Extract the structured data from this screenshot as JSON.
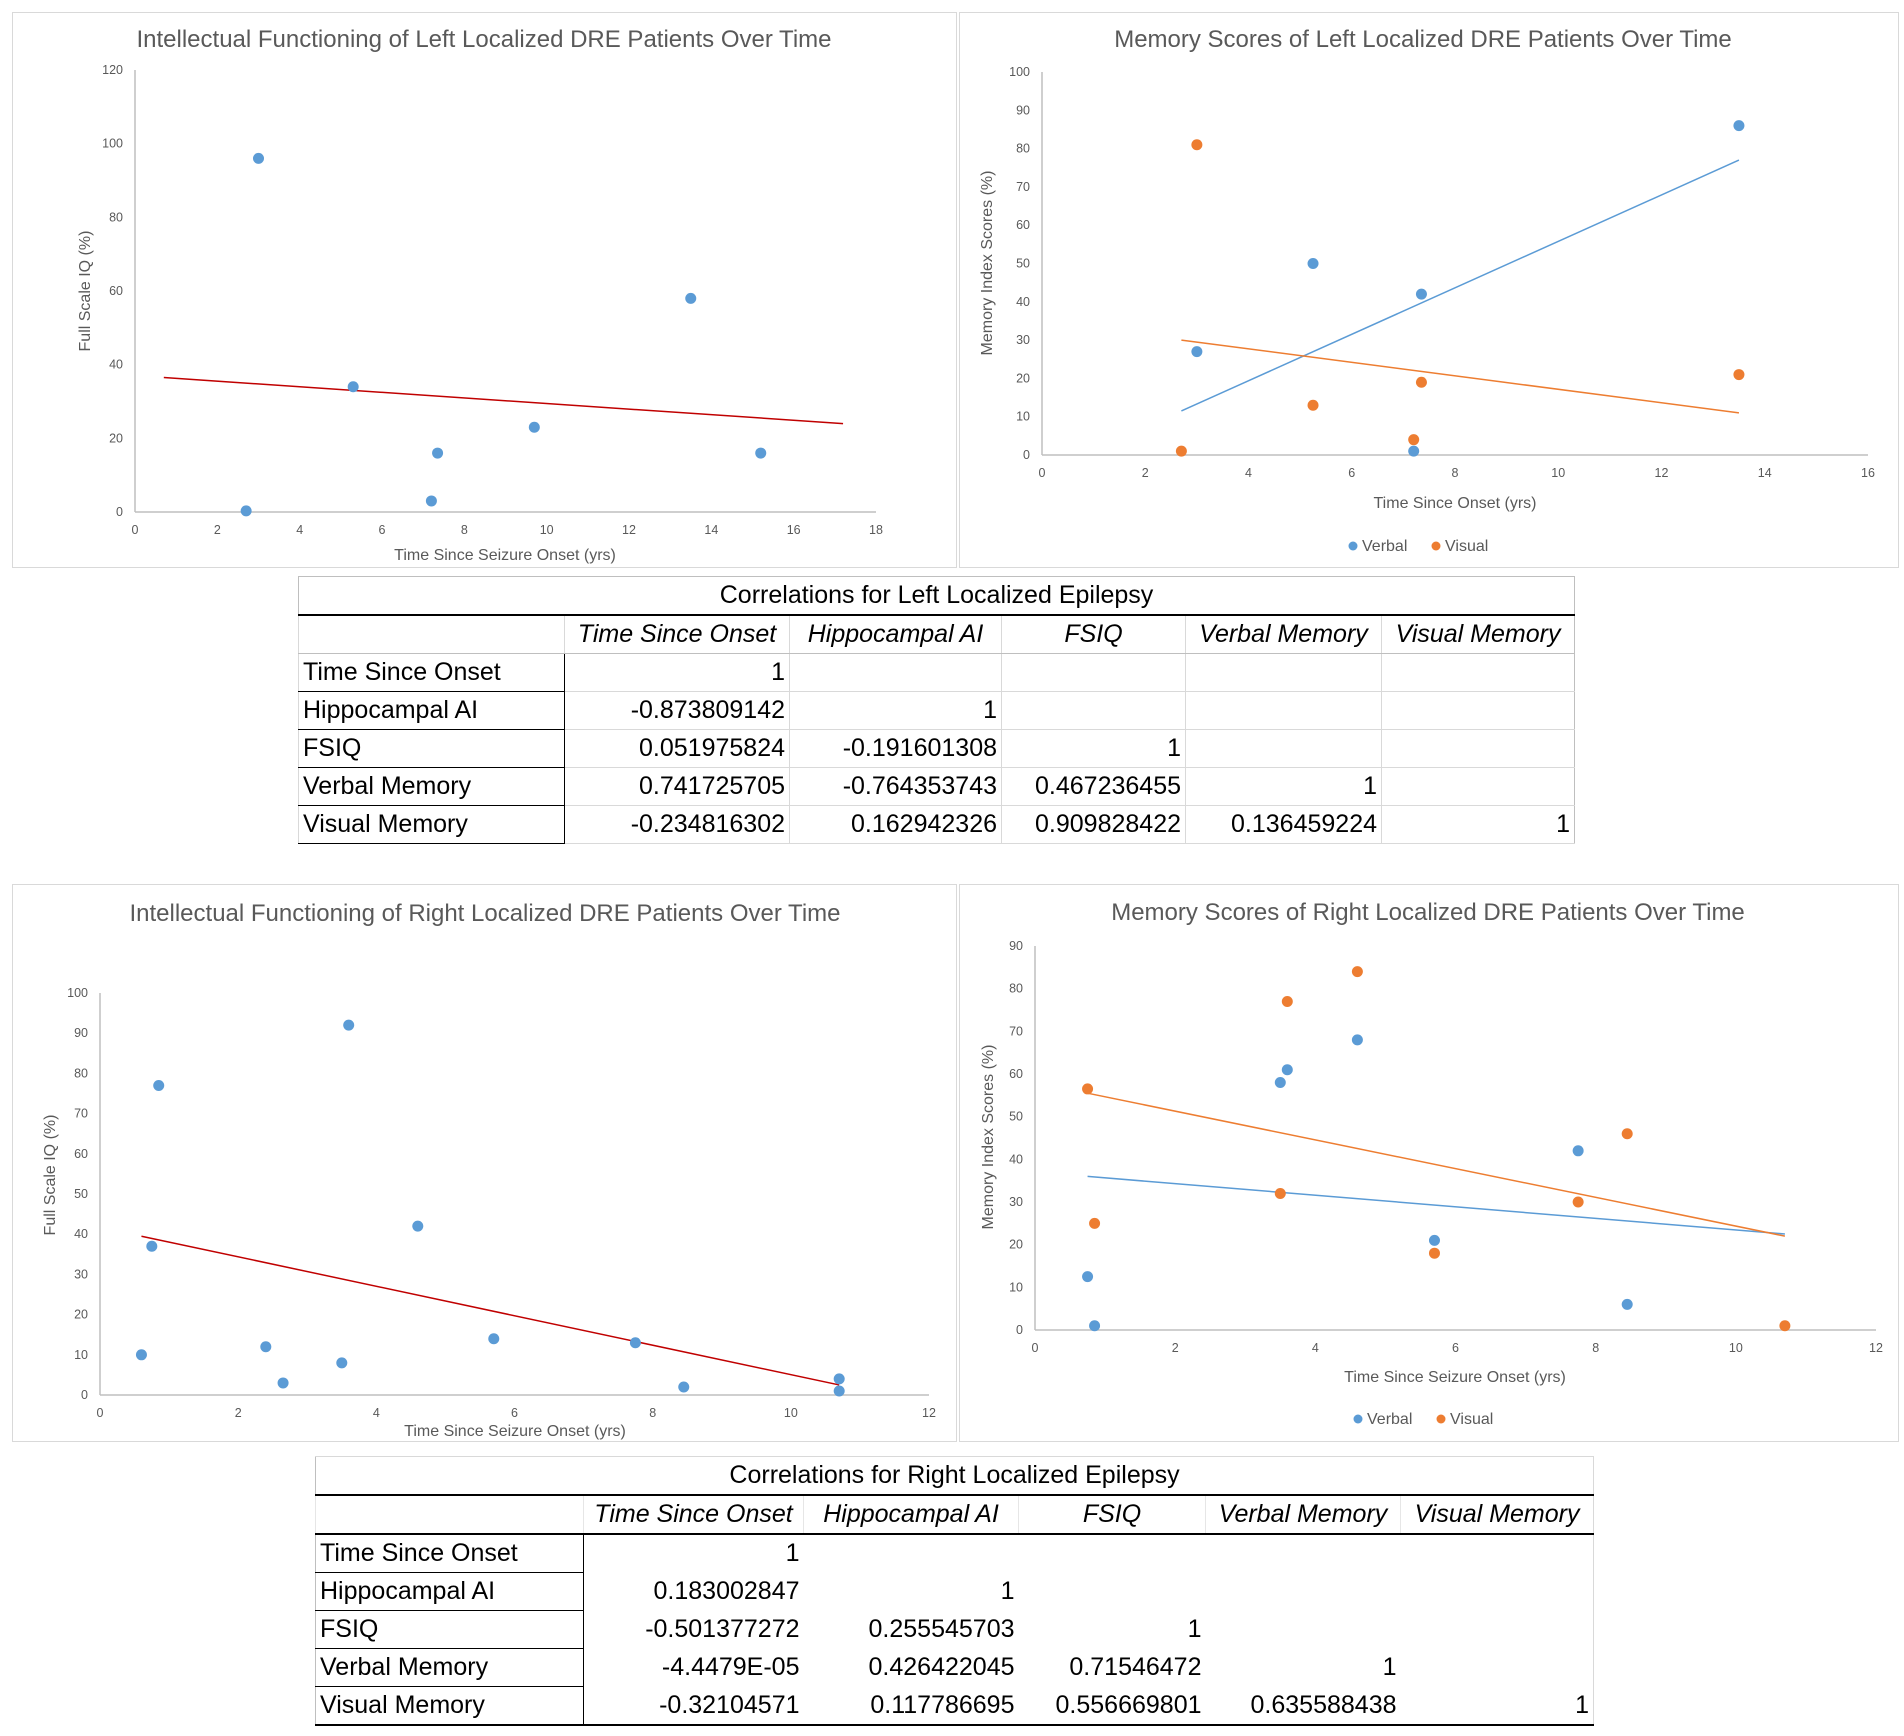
{
  "colors": {
    "verbal": "#5B9BD5",
    "visual": "#ED7D31",
    "fsiq_points": "#5B9BD5",
    "fsiq_trend": "#C00000",
    "axis": "#bfbfbf"
  },
  "chart_data": [
    {
      "type": "scatter",
      "title": "Intellectual Functioning of Left Localized DRE Patients Over Time",
      "xlabel": "Time Since Seizure Onset (yrs)",
      "ylabel": "Full Scale IQ (%)",
      "xlim": [
        0,
        18
      ],
      "ylim": [
        0,
        120
      ],
      "xticks": [
        0,
        2,
        4,
        6,
        8,
        10,
        12,
        14,
        16,
        18
      ],
      "yticks": [
        0,
        20,
        40,
        60,
        80,
        100,
        120
      ],
      "grid": false,
      "series": [
        {
          "color": "#5B9BD5",
          "points": [
            [
              2.7,
              0.3
            ],
            [
              3.0,
              96
            ],
            [
              5.3,
              34
            ],
            [
              7.2,
              3
            ],
            [
              7.35,
              16
            ],
            [
              9.7,
              23
            ],
            [
              13.5,
              58
            ],
            [
              15.2,
              16
            ]
          ],
          "trendline": {
            "color": "#C00000",
            "from": [
              0.7,
              36.5
            ],
            "to": [
              17.2,
              24
            ]
          }
        }
      ]
    },
    {
      "type": "scatter",
      "title": "Memory Scores of Left Localized DRE Patients Over Time",
      "xlabel": "Time Since Onset (yrs)",
      "ylabel": "Memory Index Scores (%)",
      "xlim": [
        0,
        16
      ],
      "ylim": [
        0,
        100
      ],
      "xticks": [
        0,
        2,
        4,
        6,
        8,
        10,
        12,
        14,
        16
      ],
      "yticks": [
        0,
        10,
        20,
        30,
        40,
        50,
        60,
        70,
        80,
        90,
        100
      ],
      "grid": false,
      "legend": "bottom",
      "series": [
        {
          "name": "Verbal",
          "color": "#5B9BD5",
          "points": [
            [
              3.0,
              27
            ],
            [
              5.25,
              50
            ],
            [
              7.35,
              42
            ],
            [
              7.2,
              1
            ],
            [
              13.5,
              86
            ]
          ],
          "trendline": {
            "color": "#5B9BD5",
            "from": [
              2.7,
              11.5
            ],
            "to": [
              13.5,
              77
            ]
          }
        },
        {
          "name": "Visual",
          "color": "#ED7D31",
          "points": [
            [
              2.7,
              1
            ],
            [
              3.0,
              81
            ],
            [
              5.25,
              13
            ],
            [
              7.35,
              19
            ],
            [
              7.2,
              4
            ],
            [
              13.5,
              21
            ]
          ],
          "trendline": {
            "color": "#ED7D31",
            "from": [
              2.7,
              30
            ],
            "to": [
              13.5,
              11
            ]
          }
        }
      ]
    },
    {
      "type": "scatter",
      "title": "Intellectual Functioning of Right Localized DRE Patients Over Time",
      "xlabel": "Time Since Seizure Onset (yrs)",
      "ylabel": "Full Scale IQ (%)",
      "xlim": [
        0,
        12
      ],
      "ylim": [
        0,
        100
      ],
      "xticks": [
        0,
        2,
        4,
        6,
        8,
        10,
        12
      ],
      "yticks": [
        0,
        10,
        20,
        30,
        40,
        50,
        60,
        70,
        80,
        90,
        100
      ],
      "grid": false,
      "series": [
        {
          "color": "#5B9BD5",
          "points": [
            [
              0.6,
              10
            ],
            [
              0.75,
              37
            ],
            [
              0.85,
              77
            ],
            [
              2.4,
              12
            ],
            [
              2.65,
              3
            ],
            [
              3.5,
              8
            ],
            [
              3.6,
              92
            ],
            [
              4.6,
              42
            ],
            [
              5.7,
              14
            ],
            [
              7.75,
              13
            ],
            [
              8.45,
              2
            ],
            [
              10.7,
              4
            ],
            [
              10.7,
              1
            ]
          ],
          "trendline": {
            "color": "#C00000",
            "from": [
              0.6,
              39.5
            ],
            "to": [
              10.7,
              2.5
            ]
          }
        }
      ]
    },
    {
      "type": "scatter",
      "title": "Memory Scores of Right Localized DRE Patients Over Time",
      "xlabel": "Time Since Seizure Onset (yrs)",
      "ylabel": "Memory Index Scores (%)",
      "xlim": [
        0,
        12
      ],
      "ylim": [
        0,
        90
      ],
      "xticks": [
        0,
        2,
        4,
        6,
        8,
        10,
        12
      ],
      "yticks": [
        0,
        10,
        20,
        30,
        40,
        50,
        60,
        70,
        80,
        90
      ],
      "grid": false,
      "legend": "bottom",
      "series": [
        {
          "name": "Verbal",
          "color": "#5B9BD5",
          "points": [
            [
              0.75,
              12.5
            ],
            [
              0.85,
              1
            ],
            [
              3.5,
              58
            ],
            [
              3.6,
              61
            ],
            [
              4.6,
              68
            ],
            [
              5.7,
              21
            ],
            [
              7.75,
              42
            ],
            [
              8.45,
              6
            ]
          ],
          "trendline": {
            "color": "#5B9BD5",
            "from": [
              0.75,
              36
            ],
            "to": [
              10.7,
              22.5
            ]
          }
        },
        {
          "name": "Visual",
          "color": "#ED7D31",
          "points": [
            [
              0.75,
              56.5
            ],
            [
              0.85,
              25
            ],
            [
              3.5,
              32
            ],
            [
              3.6,
              77
            ],
            [
              4.6,
              84
            ],
            [
              5.7,
              18
            ],
            [
              7.75,
              30
            ],
            [
              8.45,
              46
            ],
            [
              10.7,
              1
            ]
          ],
          "trendline": {
            "color": "#ED7D31",
            "from": [
              0.75,
              55.5
            ],
            "to": [
              10.7,
              22
            ]
          }
        }
      ]
    }
  ],
  "tables": [
    {
      "title": "Correlations for Left Localized Epilepsy",
      "columns": [
        "",
        "Time Since Onset",
        "Hippocampal AI",
        "FSIQ",
        "Verbal Memory",
        "Visual Memory"
      ],
      "rows": [
        [
          "Time Since Onset",
          "1",
          "",
          "",
          "",
          ""
        ],
        [
          "Hippocampal AI",
          "-0.873809142",
          "1",
          "",
          "",
          ""
        ],
        [
          "FSIQ",
          "0.051975824",
          "-0.191601308",
          "1",
          "",
          ""
        ],
        [
          "Verbal Memory",
          "0.741725705",
          "-0.764353743",
          "0.467236455",
          "1",
          ""
        ],
        [
          "Visual Memory",
          "-0.234816302",
          "0.162942326",
          "0.909828422",
          "0.136459224",
          "1"
        ]
      ]
    },
    {
      "title": "Correlations for Right Localized Epilepsy",
      "columns": [
        "",
        "Time Since Onset",
        "Hippocampal AI",
        "FSIQ",
        "Verbal Memory",
        "Visual Memory"
      ],
      "rows": [
        [
          "Time Since Onset",
          "1",
          "",
          "",
          "",
          ""
        ],
        [
          "Hippocampal AI",
          "0.183002847",
          "1",
          "",
          "",
          ""
        ],
        [
          "FSIQ",
          "-0.501377272",
          "0.255545703",
          "1",
          "",
          ""
        ],
        [
          "Verbal Memory",
          "-4.4479E-05",
          "0.426422045",
          "0.71546472",
          "1",
          ""
        ],
        [
          "Visual Memory",
          "-0.32104571",
          "0.117786695",
          "0.556669801",
          "0.635588438",
          "1"
        ]
      ]
    }
  ]
}
